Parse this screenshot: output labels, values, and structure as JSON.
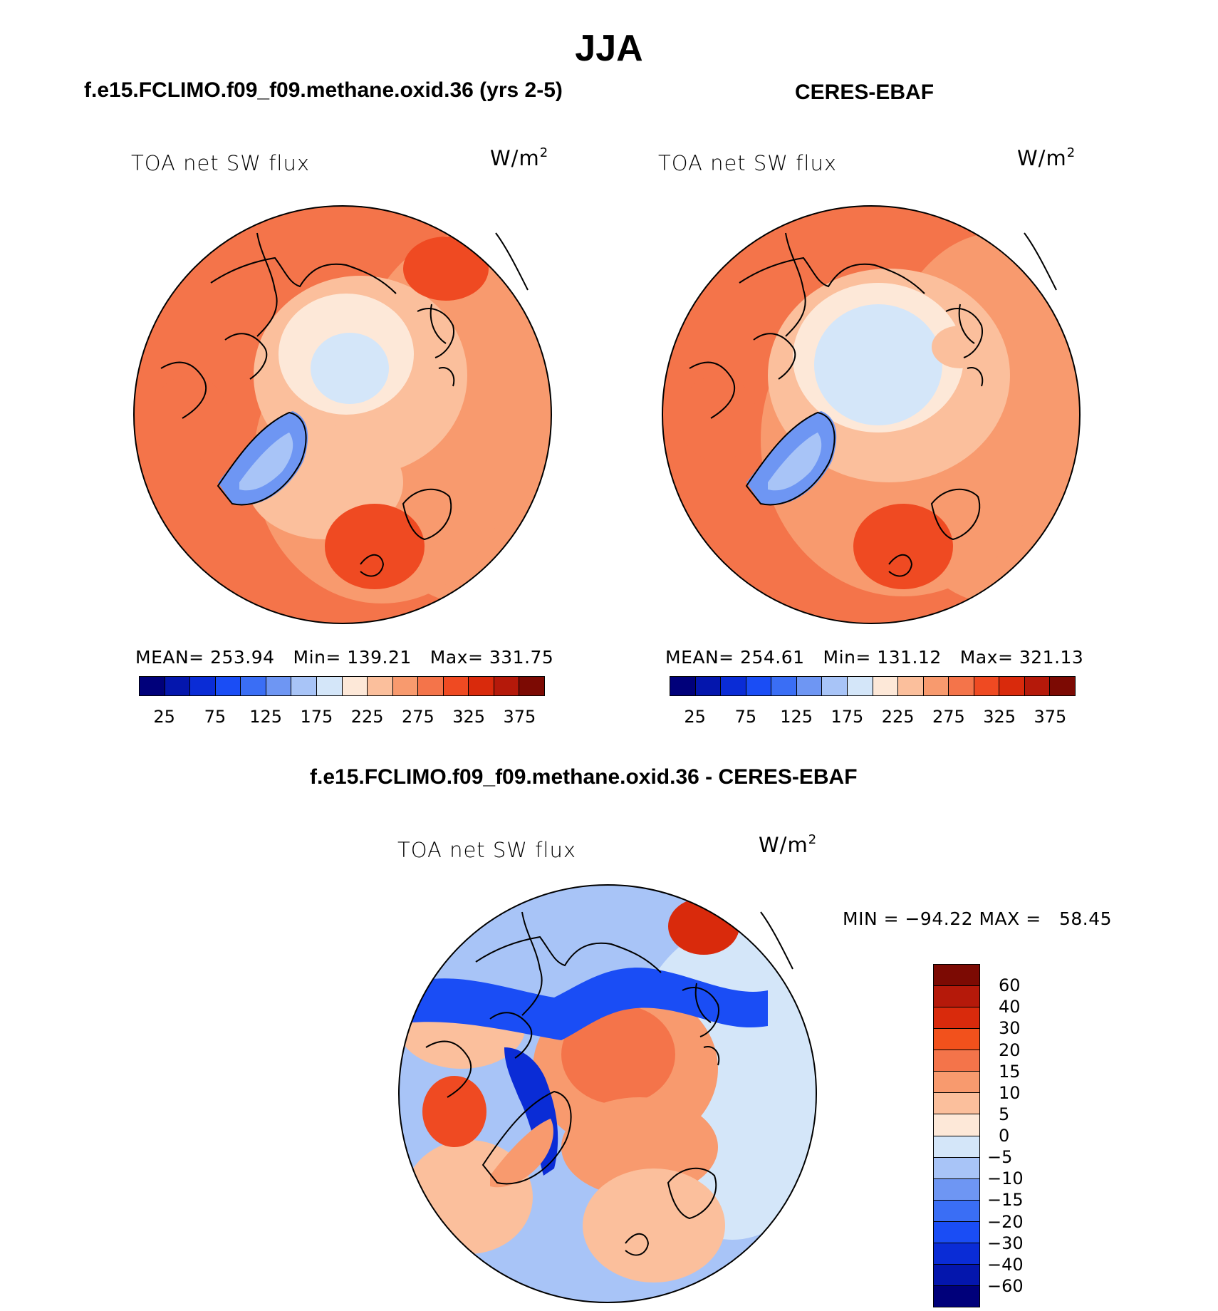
{
  "title": "JJA",
  "panels": [
    {
      "subtitle": "f.e15.FCLIMO.f09_f09.methane.oxid.36 (yrs 2-5)",
      "label": "TOA net SW flux",
      "units": "W/m",
      "units_sup": "2",
      "stats": {
        "mean": "MEAN= 253.94",
        "min": "Min= 139.21",
        "max": "Max= 331.75"
      },
      "colorbar_ticks": [
        "25",
        "75",
        "125",
        "175",
        "225",
        "275",
        "325",
        "375"
      ]
    },
    {
      "subtitle": "CERES-EBAF",
      "label": "TOA net SW flux",
      "units": "W/m",
      "units_sup": "2",
      "stats": {
        "mean": "MEAN= 254.61",
        "min": "Min= 131.12",
        "max": "Max= 321.13"
      },
      "colorbar_ticks": [
        "25",
        "75",
        "125",
        "175",
        "225",
        "275",
        "325",
        "375"
      ]
    }
  ],
  "diff_panel": {
    "subtitle": "f.e15.FCLIMO.f09_f09.methane.oxid.36 - CERES-EBAF",
    "label": "TOA net SW flux",
    "units": "W/m",
    "units_sup": "2",
    "stats": "MIN = −94.22 MAX =   58.45",
    "colorbar_ticks": [
      "60",
      "40",
      "30",
      "20",
      "15",
      "10",
      "5",
      "0",
      "−5",
      "−10",
      "−15",
      "−20",
      "−30",
      "−40",
      "−60"
    ]
  },
  "colors": {
    "abs_scale": [
      "#00007a",
      "#0416ad",
      "#0a2cd6",
      "#1a4df5",
      "#3a6ef5",
      "#6e96f3",
      "#a8c4f7",
      "#d4e6f9",
      "#fde8d8",
      "#fbbf9c",
      "#f89a6e",
      "#f4744a",
      "#ef4a22",
      "#d92a0c",
      "#b5190a",
      "#7c0a03"
    ],
    "diff_scale": [
      "#7c0a03",
      "#b5190a",
      "#d92a0c",
      "#f2511c",
      "#f4744a",
      "#f89a6e",
      "#fbbf9c",
      "#fde8d8",
      "#d4e6f9",
      "#a8c4f7",
      "#6e96f3",
      "#3a6ef5",
      "#1a4df5",
      "#0a2cd6",
      "#0416ad",
      "#00007a"
    ]
  }
}
